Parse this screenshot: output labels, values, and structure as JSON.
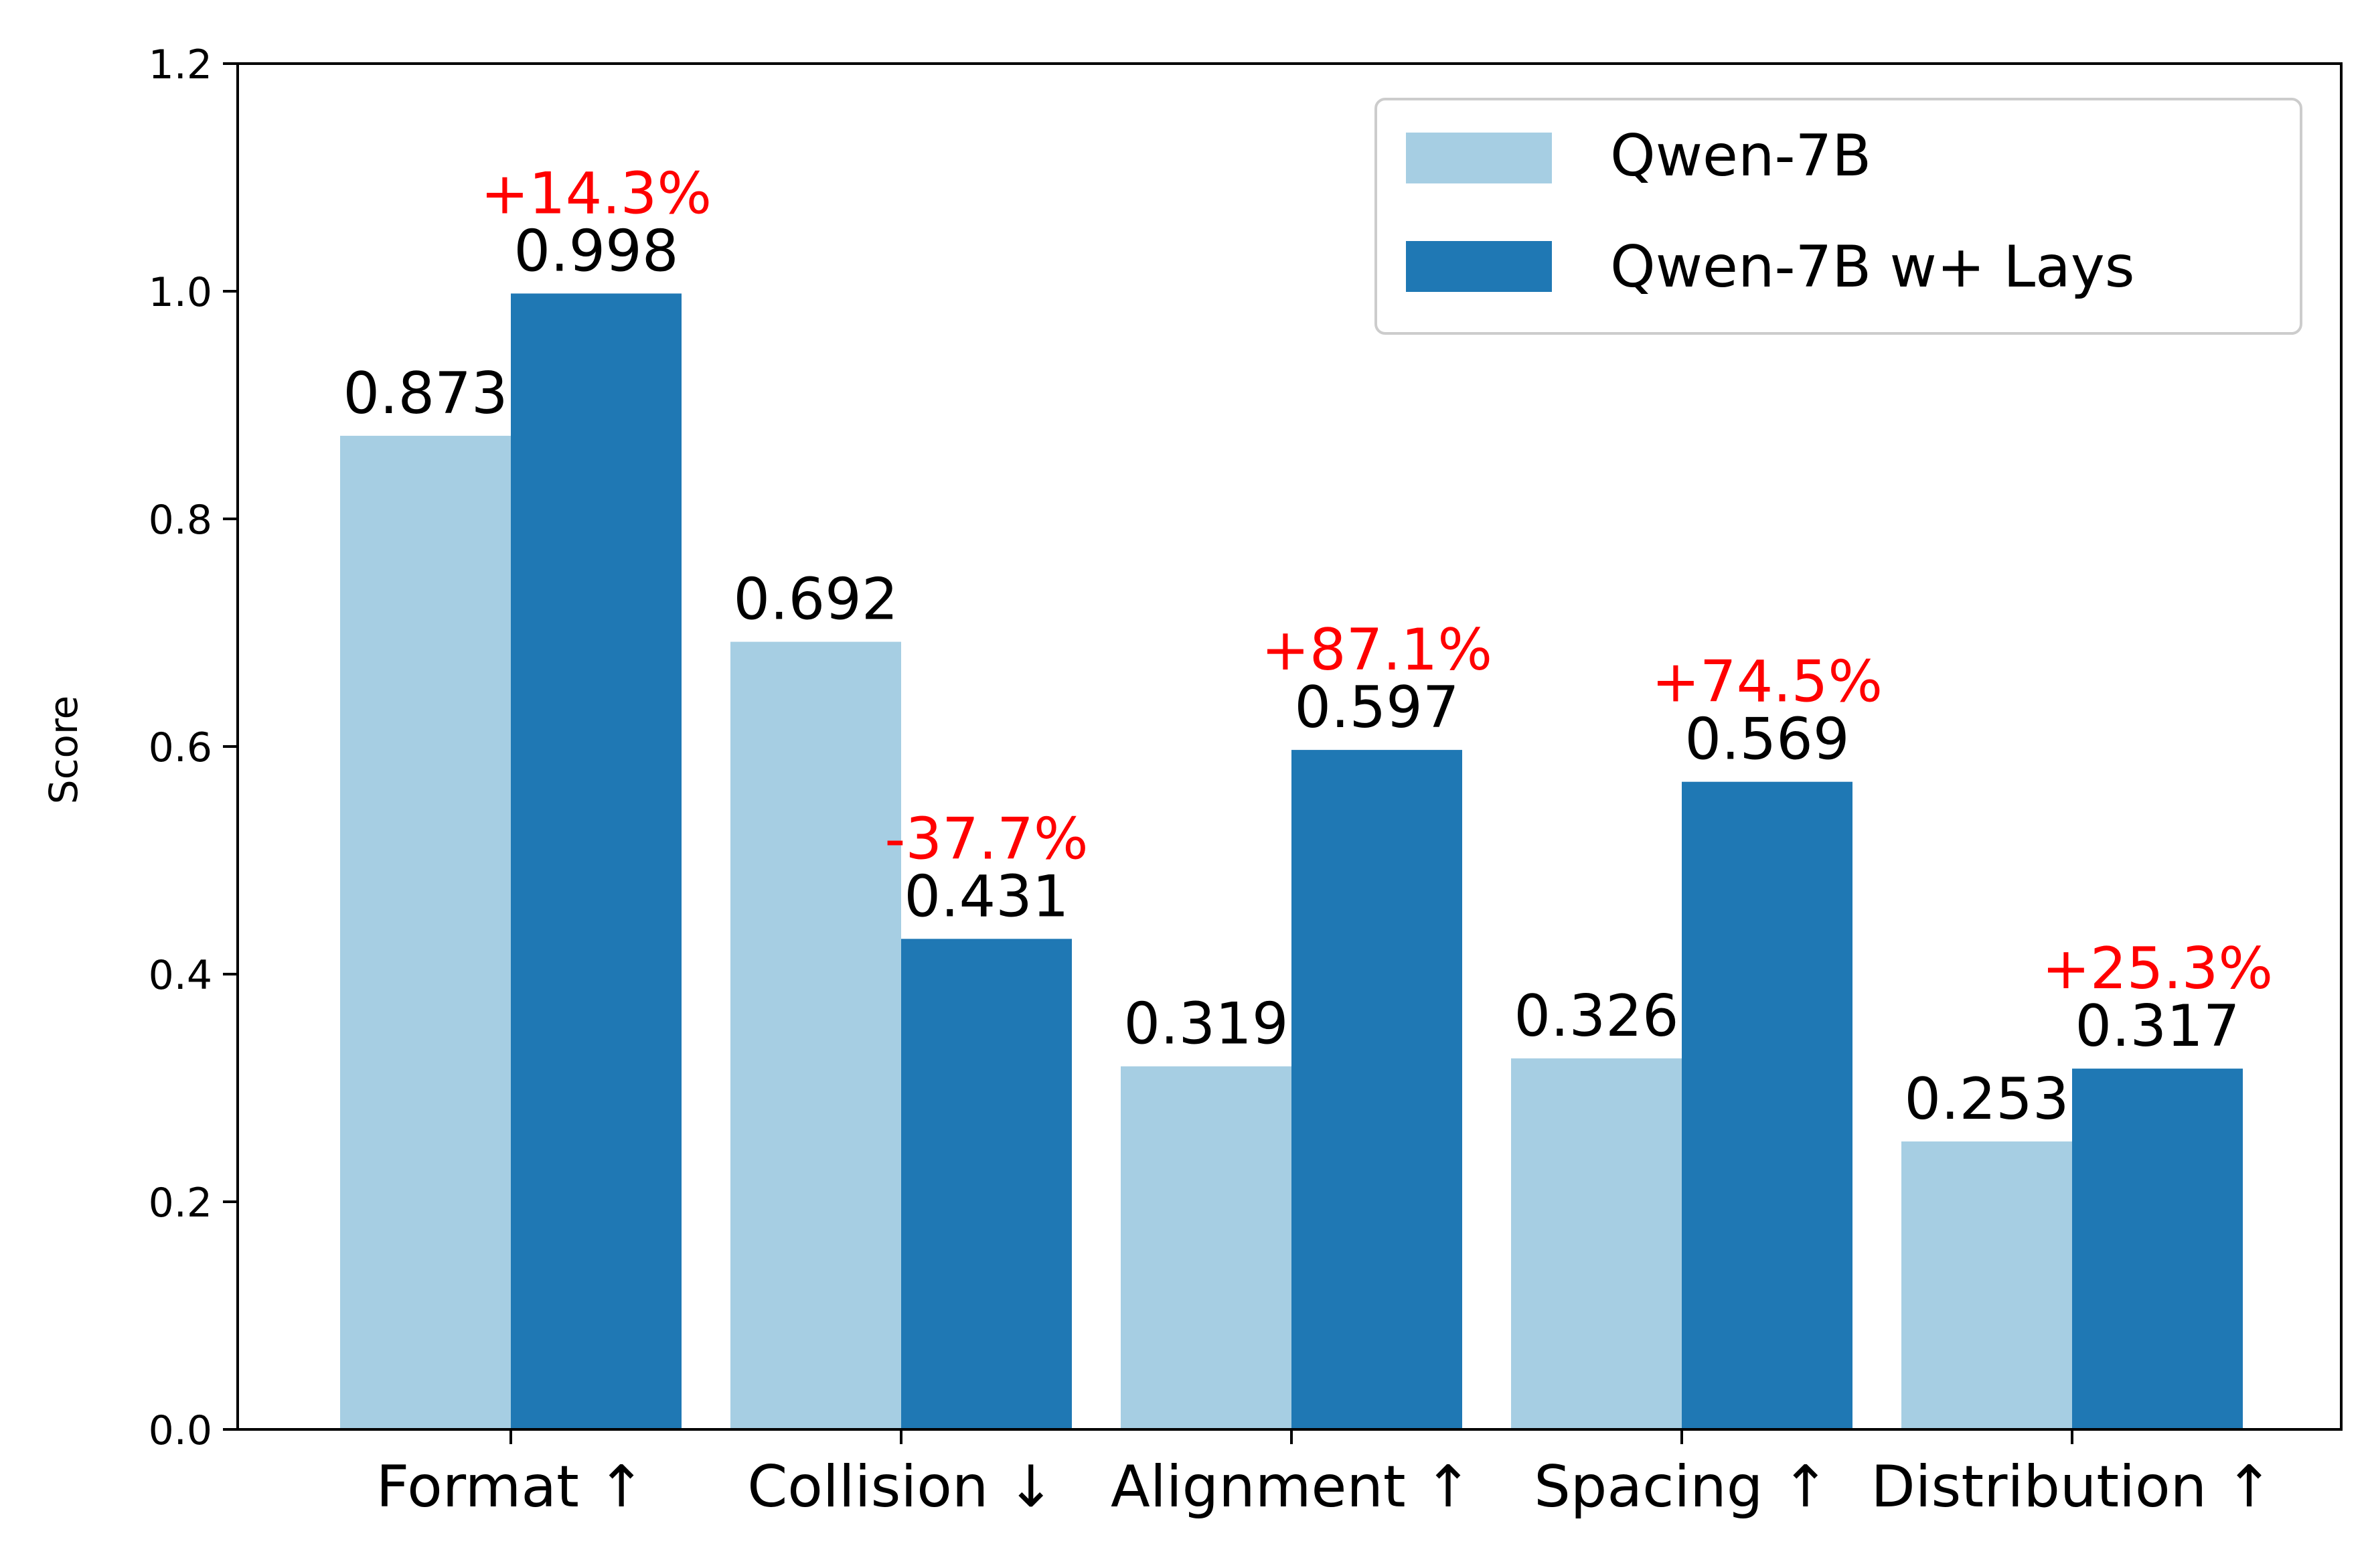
{
  "chart_data": {
    "type": "bar",
    "categories": [
      "Format ↑",
      "Collision ↓",
      "Alignment ↑",
      "Spacing ↑",
      "Distribution ↑"
    ],
    "series": [
      {
        "name": "Qwen-7B",
        "values": [
          0.873,
          0.692,
          0.319,
          0.326,
          0.253
        ],
        "labels": [
          "0.873",
          "0.692",
          "0.319",
          "0.326",
          "0.253"
        ],
        "color": "#a6cee3"
      },
      {
        "name": "Qwen-7B w+ Lays",
        "values": [
          0.998,
          0.431,
          0.597,
          0.569,
          0.317
        ],
        "labels": [
          "0.998",
          "0.431",
          "0.597",
          "0.569",
          "0.317"
        ],
        "color": "#1f78b4"
      }
    ],
    "annotations": [
      "+14.3%",
      "-37.7%",
      "+87.1%",
      "+74.5%",
      "+25.3%"
    ],
    "annotation_color": "#ff0000",
    "ylabel": "Score",
    "xlabel": "",
    "ylim": [
      0,
      1.2
    ],
    "yticks": [
      "0.0",
      "0.2",
      "0.4",
      "0.6",
      "0.8",
      "1.0",
      "1.2"
    ],
    "legend_position": "top-right",
    "grid": false
  }
}
